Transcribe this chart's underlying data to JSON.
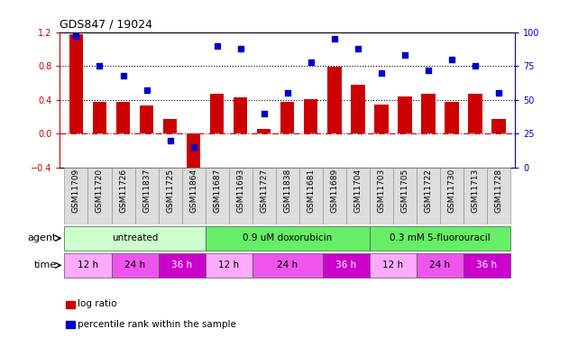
{
  "title": "GDS847 / 19024",
  "samples": [
    "GSM11709",
    "GSM11720",
    "GSM11726",
    "GSM11837",
    "GSM11725",
    "GSM11864",
    "GSM11687",
    "GSM11693",
    "GSM11727",
    "GSM11838",
    "GSM11681",
    "GSM11689",
    "GSM11704",
    "GSM11703",
    "GSM11705",
    "GSM11722",
    "GSM11730",
    "GSM11713",
    "GSM11728"
  ],
  "log_ratio": [
    1.18,
    0.37,
    0.38,
    0.33,
    0.17,
    -0.52,
    0.47,
    0.43,
    0.05,
    0.38,
    0.41,
    0.79,
    0.58,
    0.34,
    0.44,
    0.47,
    0.38,
    0.47,
    0.17
  ],
  "percentile": [
    97,
    75,
    68,
    57,
    20,
    15,
    90,
    88,
    40,
    55,
    78,
    95,
    88,
    70,
    83,
    72,
    80,
    75,
    55
  ],
  "bar_color": "#cc0000",
  "dot_color": "#0000cc",
  "bg_color": "#ffffff",
  "ylim_left": [
    -0.4,
    1.2
  ],
  "ylim_right": [
    0,
    100
  ],
  "yticks_left": [
    -0.4,
    0.0,
    0.4,
    0.8,
    1.2
  ],
  "yticks_right": [
    0,
    25,
    50,
    75,
    100
  ],
  "hline_y": [
    0.4,
    0.8
  ],
  "agent_groups": [
    {
      "label": "untreated",
      "start": 0,
      "end": 6,
      "color": "#ccffcc"
    },
    {
      "label": "0.9 uM doxorubicin",
      "start": 6,
      "end": 13,
      "color": "#66ee66"
    },
    {
      "label": "0.3 mM 5-fluorouracil",
      "start": 13,
      "end": 19,
      "color": "#66ee66"
    }
  ],
  "time_groups": [
    {
      "label": "12 h",
      "start": 0,
      "end": 2,
      "color": "#ffaaff"
    },
    {
      "label": "24 h",
      "start": 2,
      "end": 4,
      "color": "#ee55ee"
    },
    {
      "label": "36 h",
      "start": 4,
      "end": 6,
      "color": "#cc00cc"
    },
    {
      "label": "12 h",
      "start": 6,
      "end": 8,
      "color": "#ffaaff"
    },
    {
      "label": "24 h",
      "start": 8,
      "end": 11,
      "color": "#ee55ee"
    },
    {
      "label": "36 h",
      "start": 11,
      "end": 13,
      "color": "#cc00cc"
    },
    {
      "label": "12 h",
      "start": 13,
      "end": 15,
      "color": "#ffaaff"
    },
    {
      "label": "24 h",
      "start": 15,
      "end": 17,
      "color": "#ee55ee"
    },
    {
      "label": "36 h",
      "start": 17,
      "end": 19,
      "color": "#cc00cc"
    }
  ],
  "legend_log_ratio": "log ratio",
  "legend_percentile": "percentile rank within the sample"
}
